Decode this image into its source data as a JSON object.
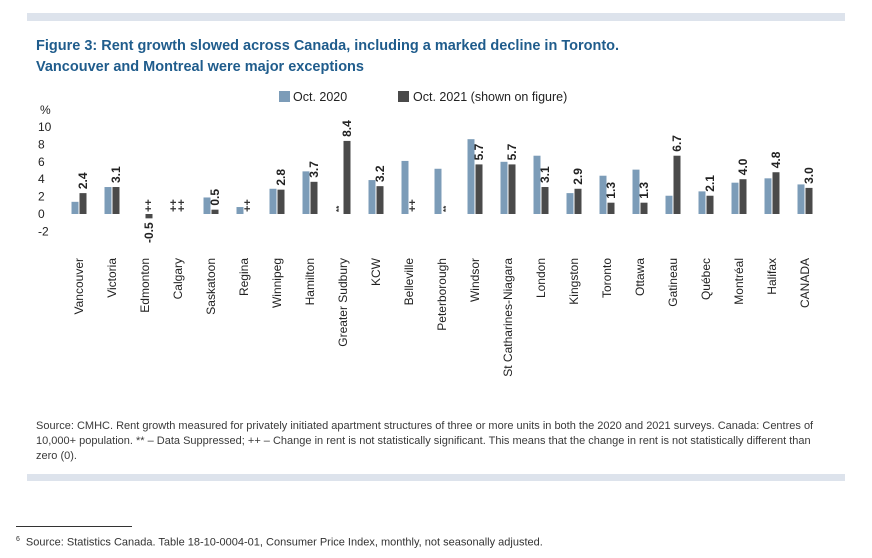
{
  "title": {
    "line1": "Figure 3: Rent growth slowed across Canada, including a marked decline in Toronto.",
    "line2": "Vancouver and Montreal were major exceptions"
  },
  "colors": {
    "title": "#1f5c8c",
    "series_2020": "#7c9cb8",
    "series_2021": "#4a4a4a",
    "rule": "#dde3ec"
  },
  "chart_data": {
    "type": "bar",
    "ylabel": "%",
    "ylim": [
      -2,
      10
    ],
    "yticks": [
      "10",
      "8",
      "6",
      "4",
      "2",
      "0",
      "-2"
    ],
    "legend_position": "top",
    "categories": [
      "Vancouver",
      "Victoria",
      "Edmonton",
      "Calgary",
      "Saskatoon",
      "Regina",
      "Winnipeg",
      "Hamilton",
      "Greater Sudbury",
      "KCW",
      "Belleville",
      "Peterborough",
      "Windsor",
      "St Catharines-Niagara",
      "London",
      "Kingston",
      "Toronto",
      "Ottawa",
      "Gatineau",
      "Québec",
      "Montréal",
      "Halifax",
      "CANADA"
    ],
    "series": [
      {
        "name": "Oct. 2020",
        "values": [
          1.4,
          3.1,
          null,
          null,
          1.9,
          0.8,
          2.9,
          4.9,
          null,
          3.9,
          6.1,
          5.2,
          8.6,
          6.0,
          6.7,
          2.4,
          4.4,
          5.1,
          2.1,
          2.6,
          3.6,
          4.1,
          3.4
        ]
      },
      {
        "name": "Oct. 2021 (shown on figure)",
        "values": [
          2.4,
          3.1,
          -0.5,
          null,
          0.5,
          null,
          2.8,
          3.7,
          8.4,
          3.2,
          null,
          null,
          5.7,
          5.7,
          3.1,
          2.9,
          1.3,
          1.3,
          6.7,
          2.1,
          4.0,
          4.8,
          3.0
        ]
      }
    ],
    "value_labels_2021": [
      "2.4",
      "3.1",
      "-0.5",
      "",
      "0.5",
      "",
      "2.8",
      "3.7",
      "8.4",
      "3.2",
      "",
      "",
      "5.7",
      "5.7",
      "3.1",
      "2.9",
      "1.3",
      "1.3",
      "6.7",
      "2.1",
      "4.0",
      "4.8",
      "3.0"
    ],
    "flags_2020": [
      "",
      "",
      "",
      "++",
      "",
      "",
      "",
      "",
      "**",
      "",
      "",
      "",
      "",
      "",
      "",
      "",
      "",
      "",
      "",
      "",
      "",
      "",
      ""
    ],
    "flags_2021": [
      "",
      "",
      "++",
      "++",
      "",
      "++",
      "",
      "",
      "",
      "",
      "++",
      "**",
      "",
      "",
      "",
      "",
      "",
      "",
      "",
      "",
      "",
      "",
      ""
    ]
  },
  "source_text": "Source: CMHC. Rent growth measured for privately initiated apartment structures of three or more units in both the 2020 and 2021 surveys. Canada: Centres of 10,000+ population. ** – Data Suppressed; ++ – Change in rent is not statistically significant. This means that the change in rent is not statistically different than zero (0).",
  "footnote": {
    "marker": "6",
    "text": "Source: Statistics Canada. Table 18-10-0004-01, Consumer Price Index, monthly, not seasonally adjusted."
  }
}
